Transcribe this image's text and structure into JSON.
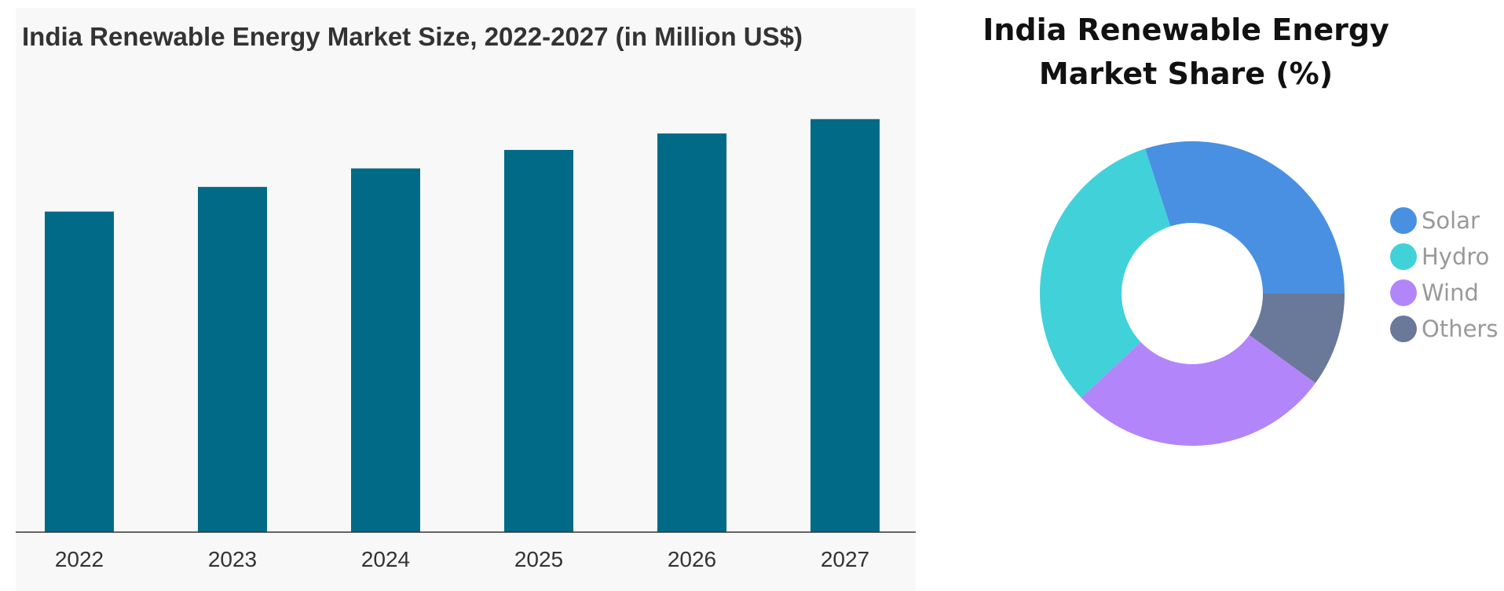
{
  "chart_data": [
    {
      "type": "bar",
      "title": "India Renewable Energy Market Size, 2022-2027 (in Million US$)",
      "categories": [
        "2022",
        "2023",
        "2024",
        "2025",
        "2026",
        "2027"
      ],
      "values": [
        78,
        84,
        88.5,
        93,
        97,
        100.5
      ],
      "xlabel": "",
      "ylabel": "",
      "ylim": [
        0,
        110
      ],
      "grid": false,
      "color": "#006a87"
    },
    {
      "type": "pie",
      "variant": "donut",
      "title": "India Renewable Energy Market Share (%)",
      "labels": [
        "Solar",
        "Hydro",
        "Wind",
        "Others"
      ],
      "values": [
        30,
        32,
        28,
        10
      ],
      "colors": [
        "#4a90e2",
        "#41d1d9",
        "#b385fb",
        "#6a7899"
      ],
      "legend_position": "right"
    }
  ]
}
